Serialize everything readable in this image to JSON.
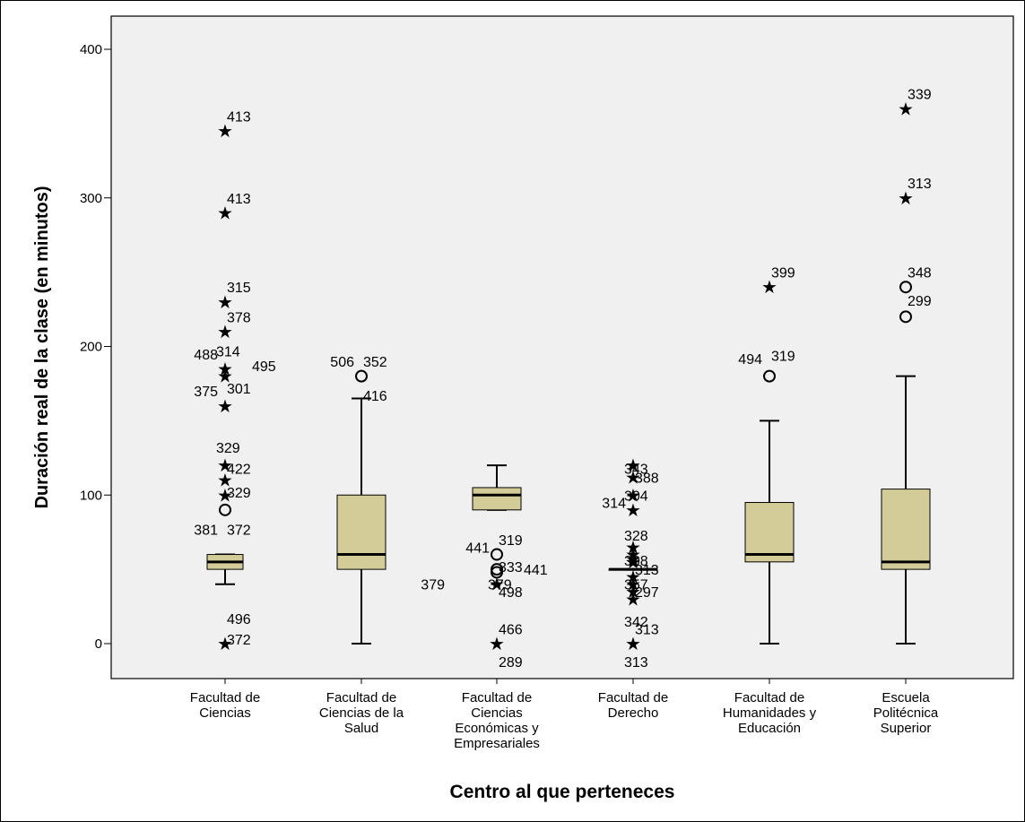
{
  "chart_data": {
    "type": "boxplot",
    "xlabel": "Centro al que perteneces",
    "ylabel": "Duración real de la clase (en minutos)",
    "ylim": [
      -20,
      405
    ],
    "yticks": [
      0,
      100,
      200,
      300,
      400
    ],
    "grid": false,
    "colors": {
      "plot_bg": "#f0f0f0",
      "box_fill": "#d3cc99",
      "ink": "#000000"
    },
    "categories": [
      {
        "label": [
          "Facultad de",
          "Ciencias"
        ],
        "whisker_low": 40,
        "q1": 50,
        "median": 55,
        "q3": 60,
        "whisker_high": 60,
        "outliers": [
          {
            "y": 345,
            "sym": "star"
          },
          {
            "y": 290,
            "sym": "star"
          },
          {
            "y": 230,
            "sym": "star"
          },
          {
            "y": 210,
            "sym": "star"
          },
          {
            "y": 185,
            "sym": "star"
          },
          {
            "y": 180,
            "sym": "star"
          },
          {
            "y": 160,
            "sym": "star"
          },
          {
            "y": 120,
            "sym": "star"
          },
          {
            "y": 110,
            "sym": "star"
          },
          {
            "y": 100,
            "sym": "star"
          },
          {
            "y": 90,
            "sym": "circle"
          },
          {
            "y": 0,
            "sym": "star"
          }
        ],
        "labels": [
          {
            "text": "413",
            "y": 355,
            "side": "right"
          },
          {
            "text": "413",
            "y": 300,
            "side": "right"
          },
          {
            "text": "315",
            "y": 240,
            "side": "right"
          },
          {
            "text": "378",
            "y": 220,
            "side": "right"
          },
          {
            "text": "488",
            "y": 195,
            "side": "far-left"
          },
          {
            "text": "314",
            "y": 197,
            "side": "left-near"
          },
          {
            "text": "495",
            "y": 187,
            "side": "far-right"
          },
          {
            "text": "375",
            "y": 170,
            "side": "far-left"
          },
          {
            "text": "301",
            "y": 172,
            "side": "right"
          },
          {
            "text": "329",
            "y": 132,
            "side": "left-near"
          },
          {
            "text": "422",
            "y": 118,
            "side": "right"
          },
          {
            "text": "329",
            "y": 102,
            "side": "right"
          },
          {
            "text": "381",
            "y": 77,
            "side": "far-left"
          },
          {
            "text": "372",
            "y": 77,
            "side": "right"
          },
          {
            "text": "496",
            "y": 17,
            "side": "right"
          },
          {
            "text": "372",
            "y": 3,
            "side": "right"
          }
        ]
      },
      {
        "label": [
          "Facultad de",
          "Ciencias de la",
          "Salud"
        ],
        "whisker_low": 0,
        "q1": 50,
        "median": 60,
        "q3": 100,
        "whisker_high": 165,
        "outliers": [
          {
            "y": 180,
            "sym": "circle"
          }
        ],
        "labels": [
          {
            "text": "506",
            "y": 190,
            "side": "far-left"
          },
          {
            "text": "352",
            "y": 190,
            "side": "right"
          },
          {
            "text": "416",
            "y": 167,
            "side": "right-near"
          }
        ]
      },
      {
        "label": [
          "Facultad de",
          "Ciencias",
          "Económicas y",
          "Empresariales"
        ],
        "whisker_low": 90,
        "q1": 90,
        "median": 100,
        "q3": 105,
        "whisker_high": 120,
        "outliers": [
          {
            "y": 60,
            "sym": "circle"
          },
          {
            "y": 50,
            "sym": "circle"
          },
          {
            "y": 48,
            "sym": "circle"
          },
          {
            "y": 40,
            "sym": "star"
          },
          {
            "y": 0,
            "sym": "star"
          }
        ],
        "labels": [
          {
            "text": "319",
            "y": 70,
            "side": "right"
          },
          {
            "text": "441",
            "y": 65,
            "side": "far-left"
          },
          {
            "text": "333",
            "y": 52,
            "side": "right-near"
          },
          {
            "text": "441",
            "y": 50,
            "side": "far-right"
          },
          {
            "text": "379",
            "y": 40,
            "side": "far-left-2"
          },
          {
            "text": "379",
            "y": 40,
            "side": "left-near"
          },
          {
            "text": "498",
            "y": 35,
            "side": "right"
          },
          {
            "text": "466",
            "y": 10,
            "side": "right"
          },
          {
            "text": "289",
            "y": -12,
            "side": "right"
          }
        ]
      },
      {
        "label": [
          "Facultad de",
          "Derecho"
        ],
        "whisker_low": 50,
        "q1": 50,
        "median": 50,
        "q3": 50,
        "whisker_high": 50,
        "outliers": [
          {
            "y": 120,
            "sym": "star"
          },
          {
            "y": 112,
            "sym": "star"
          },
          {
            "y": 100,
            "sym": "star"
          },
          {
            "y": 90,
            "sym": "star"
          },
          {
            "y": 65,
            "sym": "star"
          },
          {
            "y": 60,
            "sym": "star"
          },
          {
            "y": 57,
            "sym": "star"
          },
          {
            "y": 55,
            "sym": "star"
          },
          {
            "y": 45,
            "sym": "star"
          },
          {
            "y": 40,
            "sym": "star"
          },
          {
            "y": 35,
            "sym": "star"
          },
          {
            "y": 30,
            "sym": "star"
          },
          {
            "y": 0,
            "sym": "star"
          }
        ],
        "labels": [
          {
            "text": "343",
            "y": 118,
            "side": "left-near"
          },
          {
            "text": "388",
            "y": 112,
            "side": "right"
          },
          {
            "text": "314",
            "y": 95,
            "side": "far-left"
          },
          {
            "text": "304",
            "y": 100,
            "side": "left-near"
          },
          {
            "text": "328",
            "y": 73,
            "side": "left-near"
          },
          {
            "text": "308",
            "y": 56,
            "side": "left-near"
          },
          {
            "text": "313",
            "y": 50,
            "side": "right-near"
          },
          {
            "text": "357",
            "y": 40,
            "side": "left-near"
          },
          {
            "text": "297",
            "y": 35,
            "side": "right-near"
          },
          {
            "text": "342",
            "y": 15,
            "side": "left-near"
          },
          {
            "text": "313",
            "y": 10,
            "side": "right"
          },
          {
            "text": "313",
            "y": -12,
            "side": "left-near"
          }
        ]
      },
      {
        "label": [
          "Facultad de",
          "Humanidades y",
          "Educación"
        ],
        "whisker_low": 0,
        "q1": 55,
        "median": 60,
        "q3": 95,
        "whisker_high": 150,
        "outliers": [
          {
            "y": 240,
            "sym": "star"
          },
          {
            "y": 180,
            "sym": "circle"
          }
        ],
        "labels": [
          {
            "text": "399",
            "y": 250,
            "side": "right"
          },
          {
            "text": "494",
            "y": 192,
            "side": "far-left"
          },
          {
            "text": "319",
            "y": 194,
            "side": "right"
          }
        ]
      },
      {
        "label": [
          "Escuela",
          "Politécnica",
          "Superior"
        ],
        "whisker_low": 0,
        "q1": 50,
        "median": 55,
        "q3": 104,
        "whisker_high": 180,
        "outliers": [
          {
            "y": 360,
            "sym": "star"
          },
          {
            "y": 300,
            "sym": "star"
          },
          {
            "y": 240,
            "sym": "circle"
          },
          {
            "y": 220,
            "sym": "circle"
          }
        ],
        "labels": [
          {
            "text": "339",
            "y": 370,
            "side": "right"
          },
          {
            "text": "313",
            "y": 310,
            "side": "right"
          },
          {
            "text": "348",
            "y": 250,
            "side": "right"
          },
          {
            "text": "299",
            "y": 231,
            "side": "right-near"
          }
        ]
      }
    ]
  }
}
